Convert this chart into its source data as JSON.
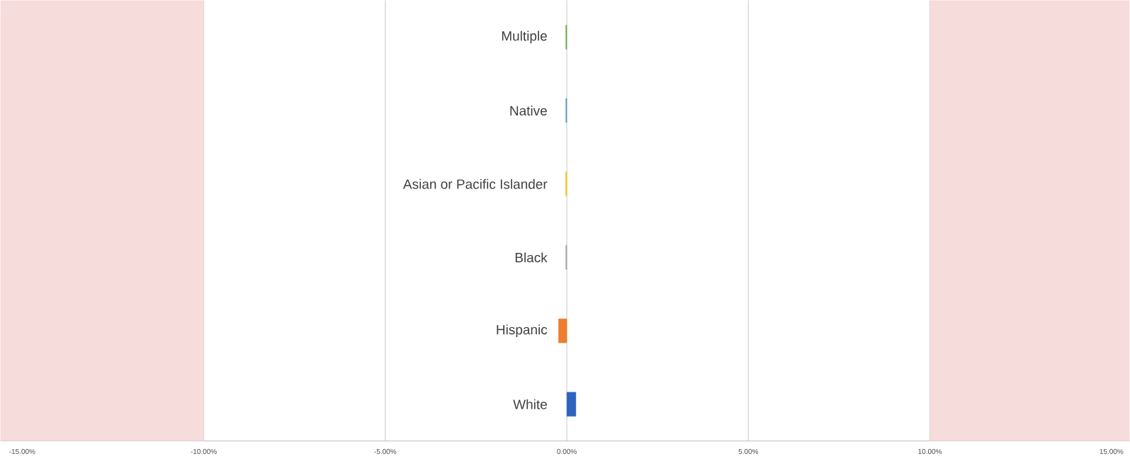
{
  "chart_data": {
    "type": "bar",
    "orientation": "horizontal",
    "categories": [
      "Multiple",
      "Native",
      "Asian or Pacific Islander",
      "Black",
      "Hispanic",
      "White"
    ],
    "values": [
      -0.03,
      -0.03,
      -0.03,
      -0.03,
      -0.23,
      0.25
    ],
    "colors": [
      "#70ad47",
      "#5b9bd5",
      "#ffc000",
      "#a5a5a5",
      "#ed7d31",
      "#2e63c0"
    ],
    "xlim": [
      -15.6,
      15.5
    ],
    "xticks": [
      {
        "value": -15,
        "label": "-15.00%"
      },
      {
        "value": -10,
        "label": "-10.00%"
      },
      {
        "value": -5,
        "label": "-5.00%"
      },
      {
        "value": 0,
        "label": "0.00%"
      },
      {
        "value": 5,
        "label": "5.00%"
      },
      {
        "value": 10,
        "label": "10.00%"
      },
      {
        "value": 15,
        "label": "15.00%"
      }
    ],
    "bands": [
      {
        "axis": "x",
        "from": -15.6,
        "to": -10,
        "color": "#f7dcdc"
      },
      {
        "axis": "x",
        "from": 10,
        "to": 15.5,
        "color": "#f7dcdc"
      }
    ],
    "grid": "x"
  }
}
